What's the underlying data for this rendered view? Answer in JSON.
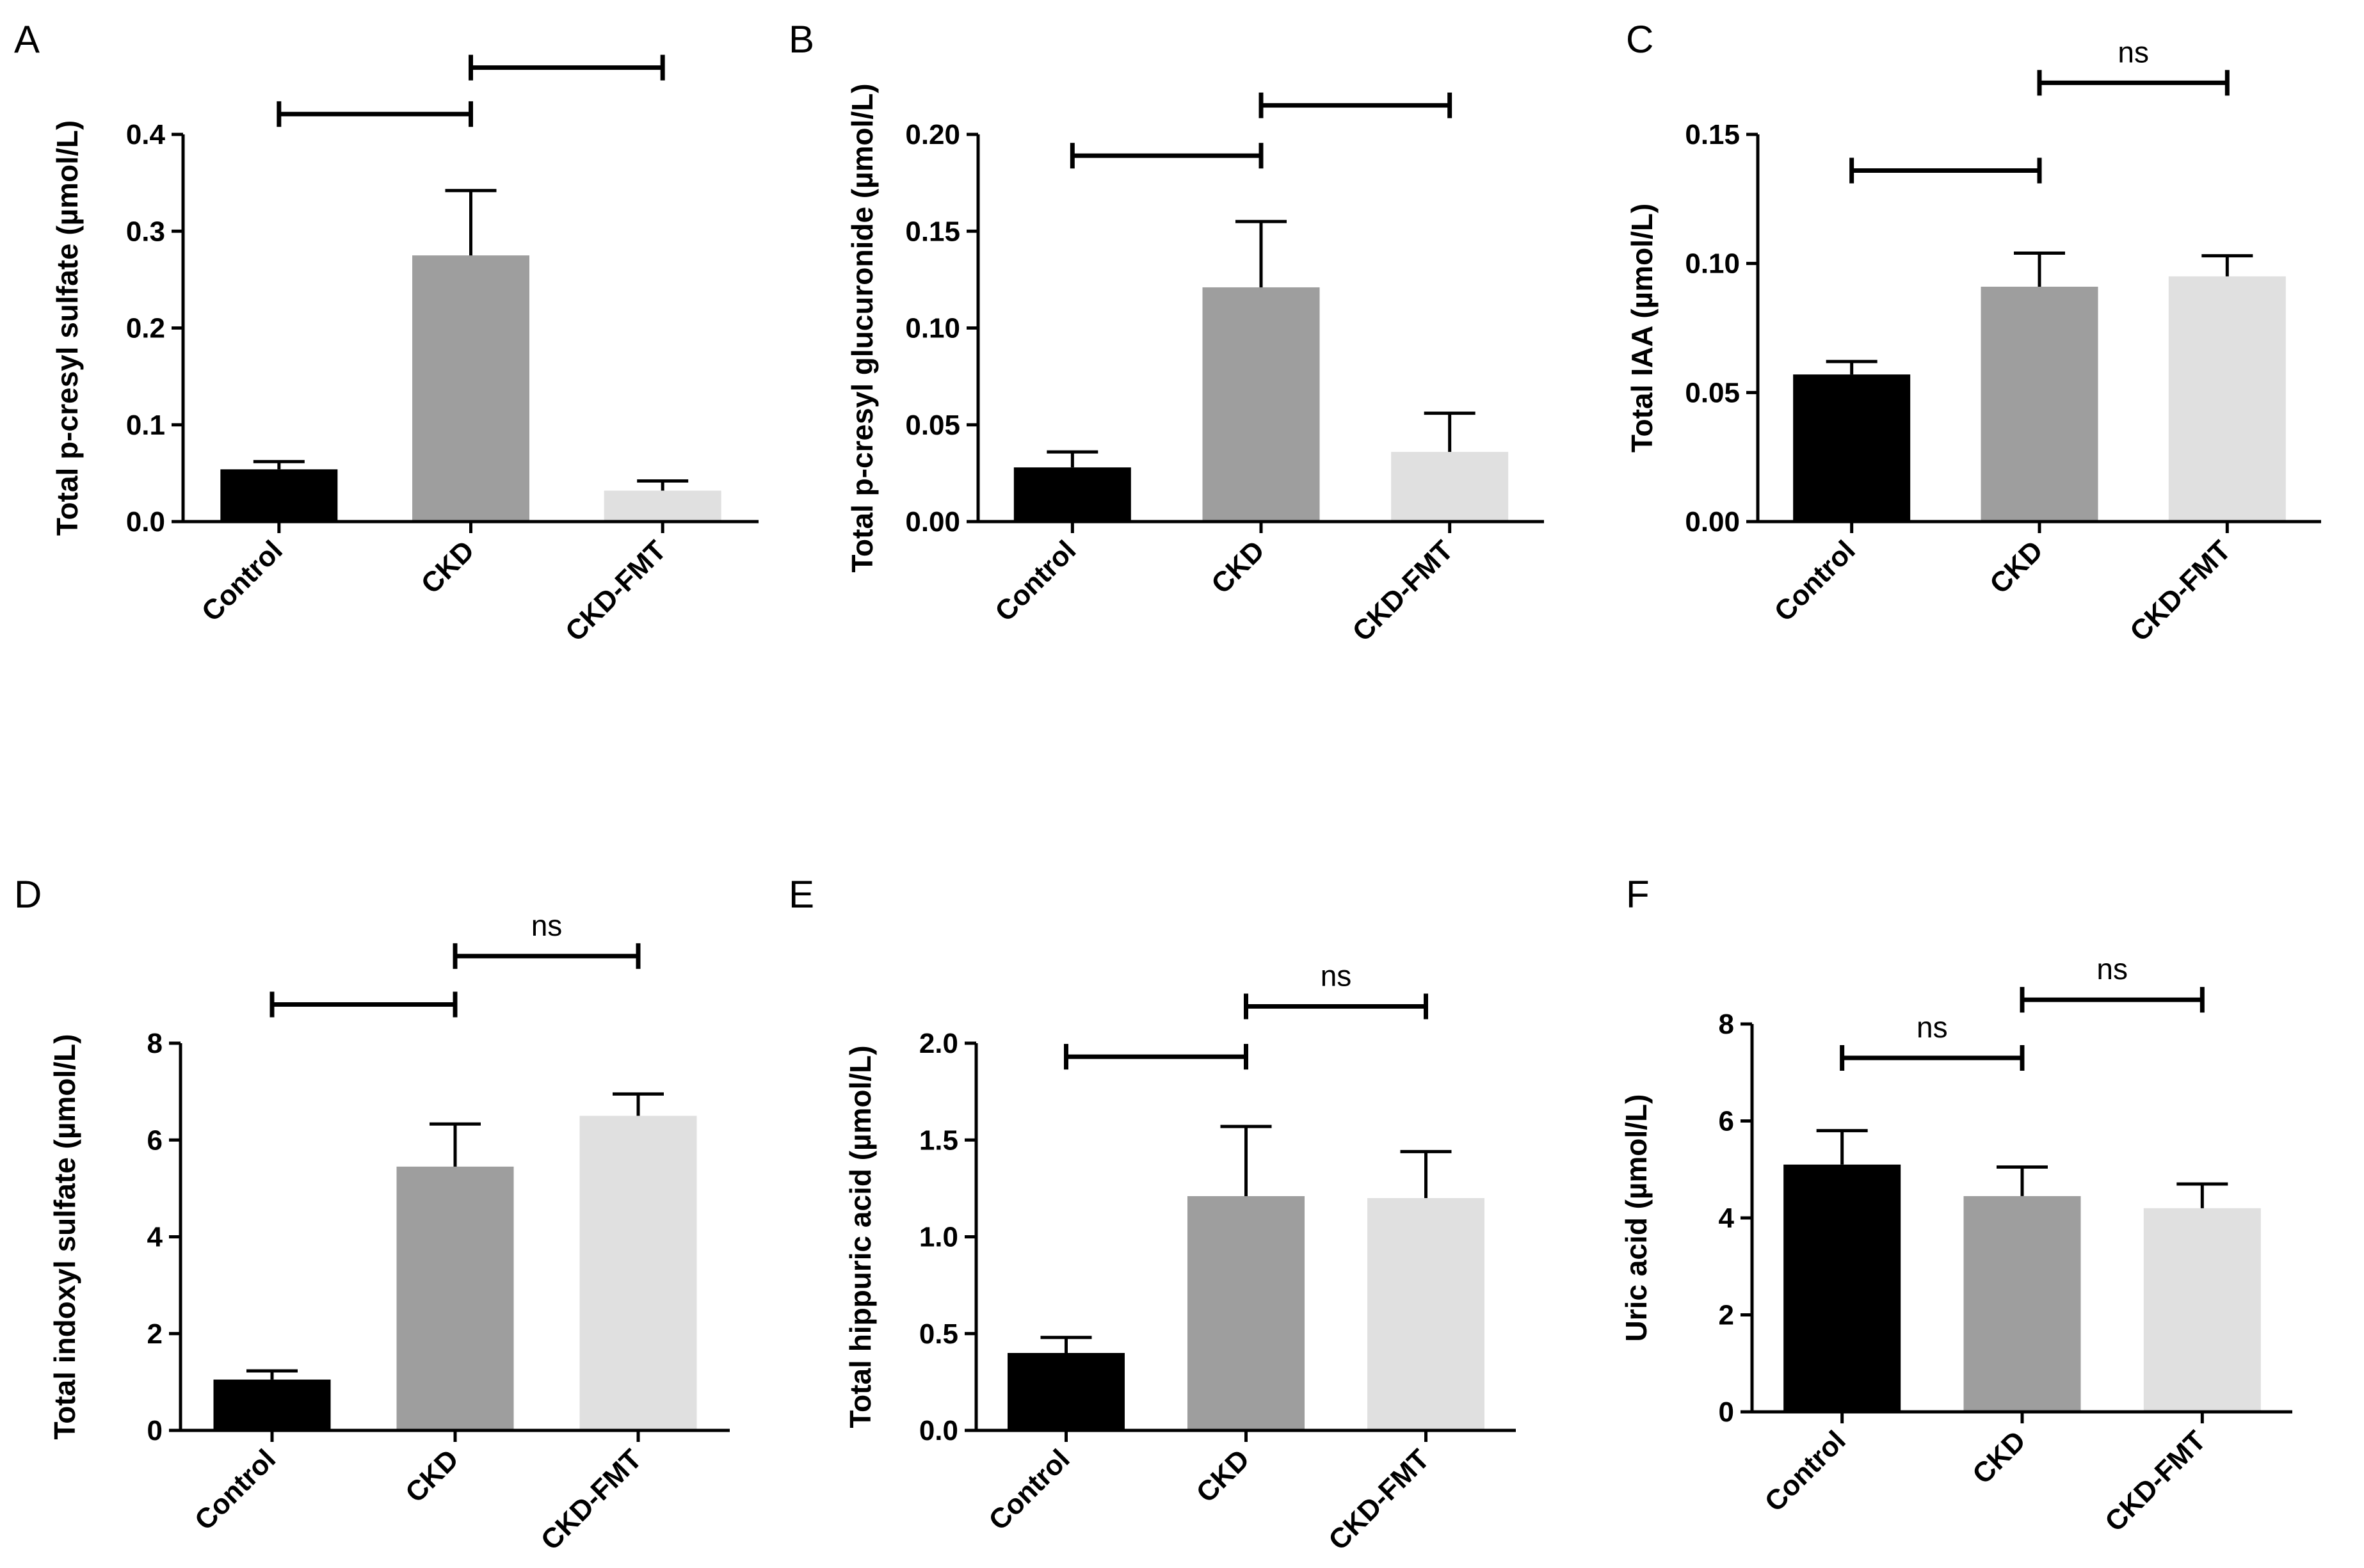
{
  "colors": {
    "Control": "#000000",
    "CKD": "#9e9e9e",
    "CKD-FMT": "#e0e0e0"
  },
  "chart_data": [
    {
      "panel": "A",
      "type": "bar",
      "categories": [
        "Control",
        "CKD",
        "CKD-FMT"
      ],
      "values": [
        0.054,
        0.275,
        0.032
      ],
      "errors": [
        0.008,
        0.067,
        0.01
      ],
      "ylabel": "Total p-cresyl sulfate (µmol/L)",
      "ylim": [
        0,
        0.4
      ],
      "yticks": [
        "0.0",
        "0.1",
        "0.2",
        "0.3",
        "0.4"
      ],
      "comparisons": [
        {
          "from": 0,
          "to": 1,
          "y": 0.421,
          "label": ""
        },
        {
          "from": 1,
          "to": 2,
          "y": 0.469,
          "label": ""
        }
      ]
    },
    {
      "panel": "B",
      "type": "bar",
      "categories": [
        "Control",
        "CKD",
        "CKD-FMT"
      ],
      "values": [
        0.028,
        0.121,
        0.036
      ],
      "errors": [
        0.008,
        0.034,
        0.02
      ],
      "ylabel": "Total p-cresyl glucuronide (µmol/L)",
      "ylim": [
        0,
        0.2
      ],
      "yticks": [
        "0.00",
        "0.05",
        "0.10",
        "0.15",
        "0.20"
      ],
      "comparisons": [
        {
          "from": 0,
          "to": 1,
          "y": 0.189,
          "label": ""
        },
        {
          "from": 1,
          "to": 2,
          "y": 0.215,
          "label": ""
        }
      ]
    },
    {
      "panel": "C",
      "type": "bar",
      "categories": [
        "Control",
        "CKD",
        "CKD-FMT"
      ],
      "values": [
        0.057,
        0.091,
        0.095
      ],
      "errors": [
        0.005,
        0.013,
        0.008
      ],
      "ylabel": "Total IAA (µmol/L)",
      "ylim": [
        0,
        0.15
      ],
      "yticks": [
        "0.00",
        "0.05",
        "0.10",
        "0.15"
      ],
      "comparisons": [
        {
          "from": 0,
          "to": 1,
          "y": 0.136,
          "label": ""
        },
        {
          "from": 1,
          "to": 2,
          "y": 0.17,
          "label": "ns"
        }
      ]
    },
    {
      "panel": "D",
      "type": "bar",
      "categories": [
        "Control",
        "CKD",
        "CKD-FMT"
      ],
      "values": [
        1.05,
        5.45,
        6.5
      ],
      "errors": [
        0.18,
        0.88,
        0.45
      ],
      "ylabel": "Total indoxyl sulfate (µmol/L)",
      "ylim": [
        0,
        8
      ],
      "yticks": [
        "0",
        "2",
        "4",
        "6",
        "8"
      ],
      "comparisons": [
        {
          "from": 0,
          "to": 1,
          "y": 8.8,
          "label": ""
        },
        {
          "from": 1,
          "to": 2,
          "y": 9.8,
          "label": "ns"
        }
      ]
    },
    {
      "panel": "E",
      "type": "bar",
      "categories": [
        "Control",
        "CKD",
        "CKD-FMT"
      ],
      "values": [
        0.4,
        1.21,
        1.2
      ],
      "errors": [
        0.08,
        0.36,
        0.24
      ],
      "ylabel": "Total hippuric acid (µmol/L)",
      "ylim": [
        0,
        2.0
      ],
      "yticks": [
        "0.0",
        "0.5",
        "1.0",
        "1.5",
        "2.0"
      ],
      "comparisons": [
        {
          "from": 0,
          "to": 1,
          "y": 1.93,
          "label": ""
        },
        {
          "from": 1,
          "to": 2,
          "y": 2.19,
          "label": "ns"
        }
      ]
    },
    {
      "panel": "F",
      "type": "bar",
      "categories": [
        "Control",
        "CKD",
        "CKD-FMT"
      ],
      "values": [
        5.1,
        4.45,
        4.2
      ],
      "errors": [
        0.7,
        0.6,
        0.5
      ],
      "ylabel": "Uric acid (µmol/L)",
      "ylim": [
        0,
        8
      ],
      "yticks": [
        "0",
        "2",
        "4",
        "6",
        "8"
      ],
      "comparisons": [
        {
          "from": 0,
          "to": 1,
          "y": 7.3,
          "label": "ns"
        },
        {
          "from": 1,
          "to": 2,
          "y": 8.5,
          "label": "ns"
        }
      ]
    }
  ]
}
